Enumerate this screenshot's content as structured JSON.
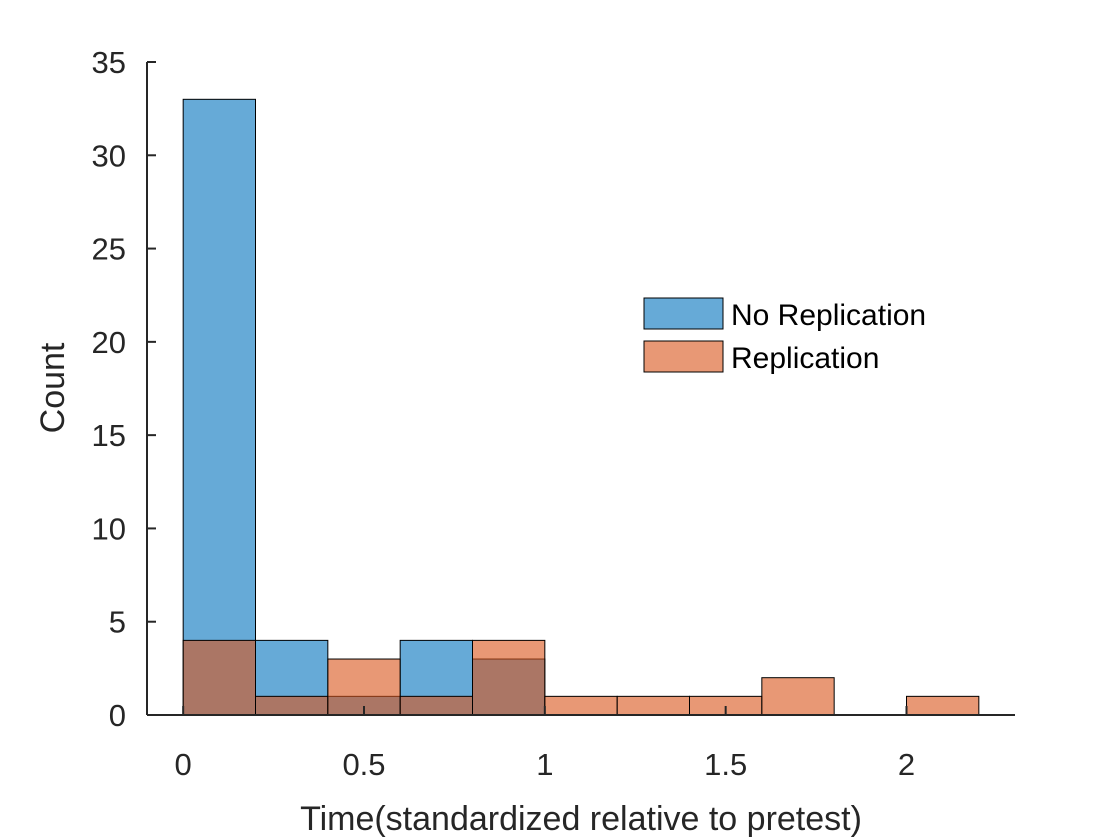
{
  "chart_data": {
    "type": "bar",
    "subtype": "overlaid-histogram",
    "title": "",
    "xlabel": "Time(standardized relative to pretest)",
    "ylabel": "Count",
    "xlim": [
      -0.1,
      2.3
    ],
    "ylim": [
      0,
      35
    ],
    "xticks": [
      "0",
      "0.5",
      "1",
      "1.5",
      "2"
    ],
    "yticks": [
      "0",
      "5",
      "10",
      "15",
      "20",
      "25",
      "30",
      "35"
    ],
    "bin_edges": [
      0,
      0.2,
      0.4,
      0.6,
      0.8,
      1.0,
      1.2,
      1.4,
      1.6,
      1.8,
      2.0,
      2.2
    ],
    "series": [
      {
        "name": "No Replication",
        "color": "#0072BD",
        "values": [
          33,
          4,
          1,
          4,
          3,
          0,
          0,
          0,
          0,
          0,
          0
        ]
      },
      {
        "name": "Replication",
        "color": "#D95319",
        "values": [
          4,
          1,
          3,
          1,
          4,
          1,
          1,
          1,
          2,
          0,
          1
        ]
      }
    ],
    "bar_alpha": 0.6,
    "grid": false,
    "legend_position": "right-middle"
  }
}
